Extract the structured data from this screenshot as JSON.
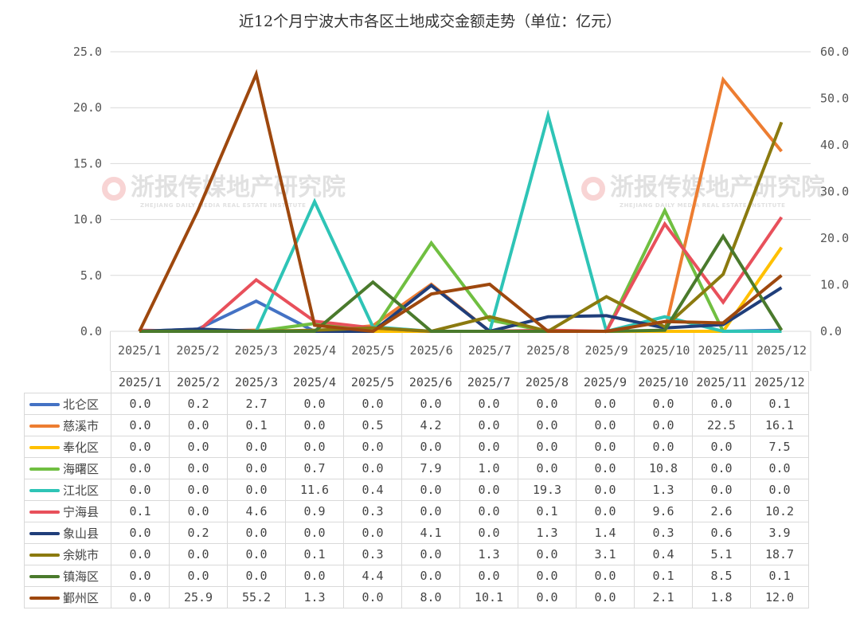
{
  "title": "近12个月宁波大市各区土地成交金额走势（单位：亿元）",
  "watermark": "浙报传媒地产研究院",
  "watermark_sub": "ZHEJIANG DAILY MEDIA REAL ESTATE INSTITUTE",
  "chart_data": {
    "type": "line",
    "title": "近12个月宁波大市各区土地成交金额走势（单位：亿元）",
    "categories": [
      "2025/1",
      "2025/2",
      "2025/3",
      "2025/4",
      "2025/5",
      "2025/6",
      "2025/7",
      "2025/8",
      "2025/9",
      "2025/10",
      "2025/11",
      "2025/12"
    ],
    "ylim": [
      0,
      25
    ],
    "y2lim": [
      0,
      60
    ],
    "yticks": [
      "0.0",
      "5.0",
      "10.0",
      "15.0",
      "20.0",
      "25.0"
    ],
    "y2ticks": [
      "0.0",
      "10.0",
      "20.0",
      "30.0",
      "40.0",
      "50.0",
      "60.0"
    ],
    "grid": true,
    "legend": "data-table",
    "series": [
      {
        "name": "北仑区",
        "color": "#4472C4",
        "axis": "left",
        "values": [
          0.0,
          0.2,
          2.7,
          0.0,
          0.0,
          0.0,
          0.0,
          0.0,
          0.0,
          0.0,
          0.0,
          0.1
        ],
        "labels": [
          "0.0",
          "0.2",
          "2.7",
          "0.0",
          "0.0",
          "0.0",
          "0.0",
          "0.0",
          "0.0",
          "0.0",
          "0.0",
          "0.1"
        ]
      },
      {
        "name": "慈溪市",
        "color": "#ED7D31",
        "axis": "left",
        "values": [
          0.0,
          0.0,
          0.1,
          0.0,
          0.5,
          4.2,
          0.0,
          0.0,
          0.0,
          0.0,
          22.5,
          16.1
        ],
        "labels": [
          "0.0",
          "0.0",
          "0.1",
          "0.0",
          "0.5",
          "4.2",
          "0.0",
          "0.0",
          "0.0",
          "0.0",
          "22.5",
          "16.1"
        ]
      },
      {
        "name": "奉化区",
        "color": "#FFC000",
        "axis": "left",
        "values": [
          0.0,
          0.0,
          0.0,
          0.0,
          0.0,
          0.0,
          0.0,
          0.0,
          0.0,
          0.0,
          0.0,
          7.5
        ],
        "labels": [
          "0.0",
          "0.0",
          "0.0",
          "0.0",
          "0.0",
          "0.0",
          "0.0",
          "0.0",
          "0.0",
          "0.0",
          "0.0",
          "7.5"
        ]
      },
      {
        "name": "海曙区",
        "color": "#70BF41",
        "axis": "left",
        "values": [
          0.0,
          0.0,
          0.0,
          0.7,
          0.0,
          7.9,
          1.0,
          0.0,
          0.0,
          10.8,
          0.0,
          0.0
        ],
        "labels": [
          "0.0",
          "0.0",
          "0.0",
          "0.7",
          "0.0",
          "7.9",
          "1.0",
          "0.0",
          "0.0",
          "10.8",
          "0.0",
          "0.0"
        ]
      },
      {
        "name": "江北区",
        "color": "#2EC4B6",
        "axis": "left",
        "values": [
          0.0,
          0.0,
          0.0,
          11.6,
          0.4,
          0.0,
          0.0,
          19.3,
          0.0,
          1.3,
          0.0,
          0.0
        ],
        "labels": [
          "0.0",
          "0.0",
          "0.0",
          "11.6",
          "0.4",
          "0.0",
          "0.0",
          "19.3",
          "0.0",
          "1.3",
          "0.0",
          "0.0"
        ]
      },
      {
        "name": "宁海县",
        "color": "#E8505B",
        "axis": "left",
        "values": [
          0.1,
          0.0,
          4.6,
          0.9,
          0.3,
          0.0,
          0.0,
          0.1,
          0.0,
          9.6,
          2.6,
          10.2
        ],
        "labels": [
          "0.1",
          "0.0",
          "4.6",
          "0.9",
          "0.3",
          "0.0",
          "0.0",
          "0.1",
          "0.0",
          "9.6",
          "2.6",
          "10.2"
        ]
      },
      {
        "name": "象山县",
        "color": "#203E7A",
        "axis": "left",
        "values": [
          0.0,
          0.2,
          0.0,
          0.0,
          0.0,
          4.1,
          0.0,
          1.3,
          1.4,
          0.3,
          0.6,
          3.9
        ],
        "labels": [
          "0.0",
          "0.2",
          "0.0",
          "0.0",
          "0.0",
          "4.1",
          "0.0",
          "1.3",
          "1.4",
          "0.3",
          "0.6",
          "3.9"
        ]
      },
      {
        "name": "余姚市",
        "color": "#8B7A0F",
        "axis": "left",
        "values": [
          0.0,
          0.0,
          0.0,
          0.1,
          0.3,
          0.0,
          1.3,
          0.0,
          3.1,
          0.4,
          5.1,
          18.7
        ],
        "labels": [
          "0.0",
          "0.0",
          "0.0",
          "0.1",
          "0.3",
          "0.0",
          "1.3",
          "0.0",
          "3.1",
          "0.4",
          "5.1",
          "18.7"
        ]
      },
      {
        "name": "镇海区",
        "color": "#4A7A2C",
        "axis": "left",
        "values": [
          0.0,
          0.0,
          0.0,
          0.0,
          4.4,
          0.0,
          0.0,
          0.0,
          0.0,
          0.1,
          8.5,
          0.1
        ],
        "labels": [
          "0.0",
          "0.0",
          "0.0",
          "0.0",
          "4.4",
          "0.0",
          "0.0",
          "0.0",
          "0.0",
          "0.1",
          "8.5",
          "0.1"
        ]
      },
      {
        "name": "鄞州区",
        "color": "#9E480E",
        "axis": "right",
        "values": [
          0.0,
          25.9,
          55.2,
          1.3,
          0.0,
          8.0,
          10.1,
          0.0,
          0.0,
          2.1,
          1.8,
          12.0
        ],
        "labels": [
          "0.0",
          "25.9",
          "55.2",
          "1.3",
          "0.0",
          "8.0",
          "10.1",
          "0.0",
          "0.0",
          "2.1",
          "1.8",
          "12.0"
        ]
      }
    ]
  }
}
